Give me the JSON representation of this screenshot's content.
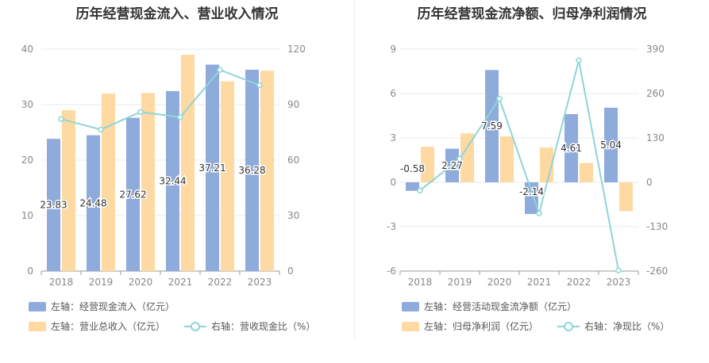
{
  "colors": {
    "bar_left": "#8eabdc",
    "bar_right": "#fed9a1",
    "line": "#8fd5d8"
  },
  "chart_data": [
    {
      "type": "bar",
      "title": "历年经营现金流入、营业收入情况",
      "categories": [
        "2018",
        "2019",
        "2020",
        "2021",
        "2022",
        "2023"
      ],
      "y_left": {
        "min": 0,
        "max": 40,
        "ticks": [
          "0",
          "10",
          "20",
          "30",
          "40"
        ]
      },
      "y_right": {
        "min": 0,
        "max": 120,
        "ticks": [
          "0",
          "30",
          "60",
          "90",
          "120"
        ]
      },
      "series": [
        {
          "name": "左轴：经营现金流入（亿元）",
          "axis": "left",
          "kind": "bar",
          "values": [
            23.83,
            24.48,
            27.62,
            32.44,
            37.21,
            36.28
          ],
          "labels": [
            "23.83",
            "24.48",
            "27.62",
            "32.44",
            "37.21",
            "36.28"
          ]
        },
        {
          "name": "左轴：营业总收入（亿元）",
          "axis": "left",
          "kind": "bar",
          "values": [
            29.0,
            32.0,
            32.1,
            39.0,
            34.2,
            36.1
          ]
        },
        {
          "name": "右轴：营收现金比（%）",
          "axis": "right",
          "kind": "line",
          "values": [
            82.2,
            76.5,
            86.0,
            83.2,
            108.8,
            100.5
          ]
        }
      ]
    },
    {
      "type": "bar",
      "title": "历年经营现金流净额、归母净利润情况",
      "categories": [
        "2018",
        "2019",
        "2020",
        "2021",
        "2022",
        "2023"
      ],
      "y_left": {
        "min": -6,
        "max": 9,
        "ticks": [
          "-6",
          "-3",
          "0",
          "3",
          "6",
          "9"
        ]
      },
      "y_right": {
        "min": -260,
        "max": 390,
        "ticks": [
          "-260",
          "-130",
          "0",
          "130",
          "260",
          "390"
        ]
      },
      "series": [
        {
          "name": "左轴：经营活动现金流净额（亿元）",
          "axis": "left",
          "kind": "bar",
          "values": [
            -0.58,
            2.27,
            7.59,
            -2.14,
            4.61,
            5.04
          ],
          "labels": [
            "-0.58",
            "2.27",
            "7.59",
            "-2.14",
            "4.61",
            "5.04"
          ]
        },
        {
          "name": "左轴：归母净利润（亿元）",
          "axis": "left",
          "kind": "bar",
          "values": [
            2.4,
            3.3,
            3.1,
            2.35,
            1.3,
            -1.95
          ]
        },
        {
          "name": "右轴：净现比（%）",
          "axis": "right",
          "kind": "line",
          "values": [
            -24,
            69,
            245,
            -91,
            357,
            -258
          ]
        }
      ]
    }
  ]
}
